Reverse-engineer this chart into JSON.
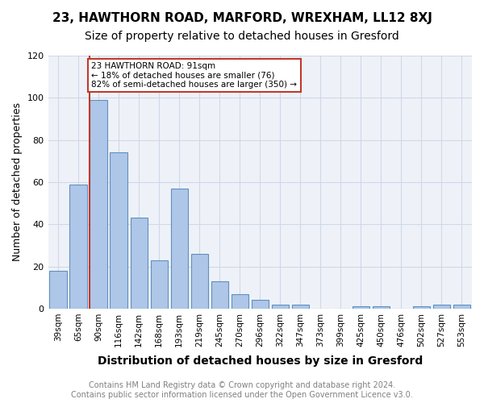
{
  "title1": "23, HAWTHORN ROAD, MARFORD, WREXHAM, LL12 8XJ",
  "title2": "Size of property relative to detached houses in Gresford",
  "xlabel": "Distribution of detached houses by size in Gresford",
  "ylabel": "Number of detached properties",
  "categories": [
    "39sqm",
    "65sqm",
    "90sqm",
    "116sqm",
    "142sqm",
    "168sqm",
    "193sqm",
    "219sqm",
    "245sqm",
    "270sqm",
    "296sqm",
    "322sqm",
    "347sqm",
    "373sqm",
    "399sqm",
    "425sqm",
    "450sqm",
    "476sqm",
    "502sqm",
    "527sqm",
    "553sqm"
  ],
  "values": [
    18,
    59,
    99,
    74,
    43,
    23,
    57,
    26,
    13,
    7,
    4,
    2,
    2,
    0,
    0,
    1,
    1,
    0,
    1,
    2,
    2
  ],
  "bar_color": "#aec6e8",
  "bar_edge_color": "#6090c0",
  "vline_index": 2,
  "vline_color": "#c0392b",
  "annotation_text": "23 HAWTHORN ROAD: 91sqm\n← 18% of detached houses are smaller (76)\n82% of semi-detached houses are larger (350) →",
  "annotation_box_color": "white",
  "annotation_box_edge": "#c0392b",
  "ylim": [
    0,
    120
  ],
  "yticks": [
    0,
    20,
    40,
    60,
    80,
    100,
    120
  ],
  "grid_color": "#d0d8e8",
  "background_color": "#eef2f8",
  "footer": "Contains HM Land Registry data © Crown copyright and database right 2024.\nContains public sector information licensed under the Open Government Licence v3.0.",
  "title1_fontsize": 11,
  "title2_fontsize": 10,
  "xlabel_fontsize": 10,
  "ylabel_fontsize": 9,
  "footer_fontsize": 7
}
